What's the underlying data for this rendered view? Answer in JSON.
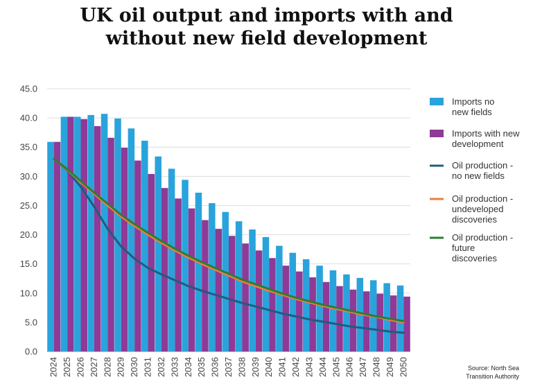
{
  "chart_data": {
    "type": "bar",
    "title": "UK oil output and imports with and without new field development",
    "source": "Source: North Sea Transition Authority",
    "ylim": [
      0,
      45
    ],
    "yticks": [
      "45.0",
      "40.0",
      "35.0",
      "30.0",
      "25.0",
      "20.0",
      "15.0",
      "10.0",
      "5.0",
      "0.0"
    ],
    "ytick_values": [
      45,
      40,
      35,
      30,
      25,
      20,
      15,
      10,
      5,
      0
    ],
    "grid": true,
    "legend_position": "right",
    "categories": [
      "2024",
      "2025",
      "2026",
      "2027",
      "2028",
      "2029",
      "2030",
      "2031",
      "2032",
      "2033",
      "2034",
      "2035",
      "2036",
      "2037",
      "2038",
      "2039",
      "2040",
      "2041",
      "2042",
      "2043",
      "2044",
      "2045",
      "2046",
      "2047",
      "2048",
      "2049",
      "2050"
    ],
    "bar_series": [
      {
        "name": "Imports no new fields",
        "color": "#29a3dc",
        "values": [
          35.9,
          40.2,
          40.2,
          40.5,
          40.7,
          39.9,
          38.2,
          36.1,
          33.4,
          31.3,
          29.4,
          27.2,
          25.4,
          23.9,
          22.3,
          20.9,
          19.6,
          18.1,
          16.9,
          15.8,
          14.7,
          13.9,
          13.2,
          12.6,
          12.2,
          11.7,
          11.3
        ]
      },
      {
        "name": "Imports with new development",
        "color": "#8e3a96",
        "values": [
          35.9,
          40.2,
          39.8,
          38.6,
          36.6,
          34.9,
          32.7,
          30.4,
          28.0,
          26.2,
          24.5,
          22.5,
          21.0,
          19.8,
          18.5,
          17.3,
          16.0,
          14.7,
          13.7,
          12.7,
          11.9,
          11.2,
          10.6,
          10.3,
          9.9,
          9.6,
          9.4
        ]
      }
    ],
    "line_series": [
      {
        "name": "Oil production - no new fields",
        "color": "#1f5c7d",
        "values": [
          33.0,
          31.0,
          28.2,
          24.8,
          21.0,
          18.0,
          15.9,
          14.3,
          13.2,
          12.2,
          11.2,
          10.4,
          9.7,
          9.0,
          8.3,
          7.7,
          7.1,
          6.5,
          6.0,
          5.5,
          5.1,
          4.7,
          4.3,
          4.0,
          3.7,
          3.4,
          3.2
        ]
      },
      {
        "name": "Oil production - undeveloped discoveries",
        "color": "#ef7e3b",
        "values": [
          33.0,
          31.1,
          29.0,
          27.0,
          25.0,
          23.1,
          21.5,
          20.0,
          18.6,
          17.3,
          16.1,
          15.0,
          14.0,
          13.0,
          12.0,
          11.2,
          10.4,
          9.7,
          9.0,
          8.4,
          7.8,
          7.3,
          6.8,
          6.3,
          5.9,
          5.4,
          5.0
        ]
      },
      {
        "name": "Oil production - future discoveries",
        "color": "#2e7d32",
        "values": [
          33.0,
          31.2,
          29.2,
          27.2,
          25.3,
          23.4,
          21.8,
          20.3,
          18.9,
          17.6,
          16.4,
          15.3,
          14.3,
          13.3,
          12.3,
          11.5,
          10.7,
          9.9,
          9.2,
          8.6,
          8.0,
          7.5,
          7.0,
          6.5,
          6.0,
          5.6,
          5.2
        ]
      }
    ],
    "legend": [
      {
        "lines": [
          "Imports no",
          "new fields"
        ],
        "kind": "bar",
        "color": "#29a3dc"
      },
      {
        "lines": [
          "Imports with new",
          "development"
        ],
        "kind": "bar",
        "color": "#8e3a96"
      },
      {
        "lines": [
          "Oil production -",
          "no new fields"
        ],
        "kind": "line",
        "color": "#1f5c7d"
      },
      {
        "lines": [
          "Oil production -",
          "undeveloped",
          "discoveries"
        ],
        "kind": "line",
        "color": "#ef7e3b"
      },
      {
        "lines": [
          "Oil production -",
          "future",
          "discoveries"
        ],
        "kind": "line",
        "color": "#2e7d32"
      }
    ]
  },
  "header": {
    "title_line1": "UK oil output and imports with and",
    "title_line2": "without new field development"
  },
  "footer": {
    "source_line1": "Source: North Sea",
    "source_line2": "Transition Authority"
  }
}
